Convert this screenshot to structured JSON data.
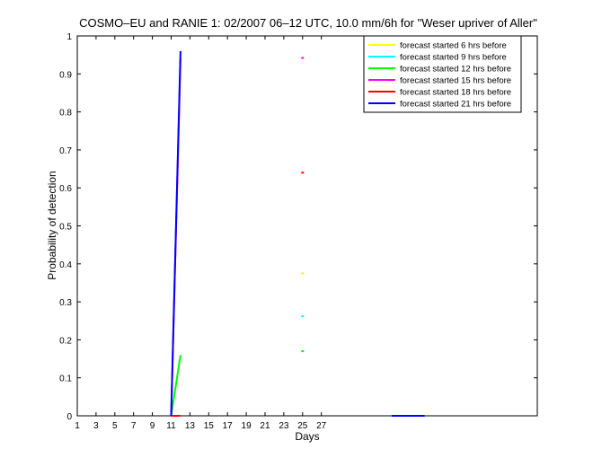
{
  "chart_data": {
    "type": "line",
    "title": "COSMO–EU and RANIE 1: 02/2007 06–12 UTC, 10.0 mm/6h for \"Weser upriver of Aller\"",
    "xlabel": "Days",
    "ylabel": "Probability of detection",
    "xlim": [
      1,
      50
    ],
    "ylim": [
      0,
      1
    ],
    "xticks": [
      1,
      3,
      5,
      7,
      9,
      11,
      13,
      15,
      17,
      19,
      21,
      23,
      25,
      27
    ],
    "yticks": [
      0,
      0.1,
      0.2,
      0.3,
      0.4,
      0.5,
      0.6,
      0.7,
      0.8,
      0.9,
      1
    ],
    "ytick_labels": [
      "0",
      "0.1",
      "0.2",
      "0.3",
      "0.4",
      "0.5",
      "0.6",
      "0.7",
      "0.8",
      "0.9",
      "1"
    ],
    "legend_position": "top-right",
    "series": [
      {
        "name": "forecast started 6 hrs before",
        "color": "#ffff00",
        "segments": [
          [
            [
              11,
              0
            ],
            [
              12,
              0
            ]
          ],
          [
            [
              34.5,
              0
            ],
            [
              38,
              0
            ]
          ]
        ],
        "points": [
          [
            25,
            0.375
          ]
        ]
      },
      {
        "name": "forecast started 9 hrs before",
        "color": "#00ffff",
        "segments": [
          [
            [
              11,
              0
            ],
            [
              12,
              0
            ]
          ],
          [
            [
              34.5,
              0
            ],
            [
              38,
              0
            ]
          ]
        ],
        "points": [
          [
            25,
            0.262
          ]
        ]
      },
      {
        "name": "forecast started 12 hrs before",
        "color": "#00ff00",
        "segments": [
          [
            [
              11,
              0
            ],
            [
              12,
              0.16
            ]
          ],
          [
            [
              34.5,
              0
            ],
            [
              38,
              0
            ]
          ]
        ],
        "points": [
          [
            25,
            0.17
          ]
        ]
      },
      {
        "name": "forecast started 15 hrs before",
        "color": "#ff00ff",
        "segments": [
          [
            [
              11,
              0
            ],
            [
              12,
              0.94
            ]
          ],
          [
            [
              34.5,
              0
            ],
            [
              38,
              0
            ]
          ]
        ],
        "points": [
          [
            25,
            0.942
          ]
        ]
      },
      {
        "name": "forecast started 18 hrs before",
        "color": "#ff0000",
        "segments": [
          [
            [
              11,
              0
            ],
            [
              12,
              0
            ]
          ],
          [
            [
              34.5,
              0
            ],
            [
              38,
              0
            ]
          ]
        ],
        "points": [
          [
            25,
            0.64
          ]
        ]
      },
      {
        "name": "forecast started 21 hrs before",
        "color": "#0000ff",
        "segments": [
          [
            [
              11,
              0
            ],
            [
              12,
              0.96
            ]
          ],
          [
            [
              34.5,
              0
            ],
            [
              38,
              0
            ]
          ]
        ],
        "points": []
      }
    ]
  }
}
